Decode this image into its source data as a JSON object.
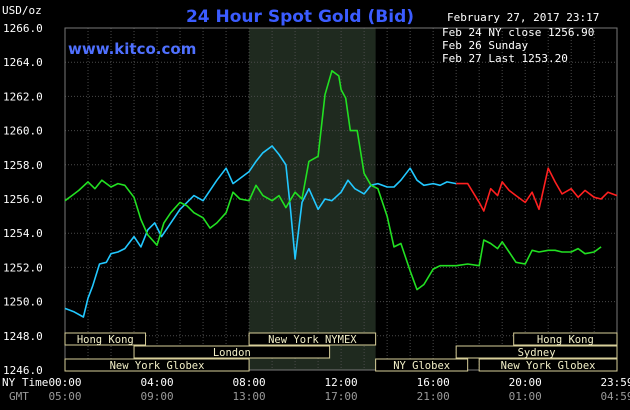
{
  "header": {
    "title": "24 Hour Spot Gold (Bid)",
    "website": "www.kitco.com",
    "unit": "USD/oz",
    "timestamp": "February 27, 2017 23:17"
  },
  "legend": [
    {
      "label": "Feb 24 NY close 1256.90",
      "color": "#22c8ff"
    },
    {
      "label": "Feb 26 Sunday",
      "color": "#ff2020"
    },
    {
      "label": "Feb 27 Last 1253.20",
      "color": "#22e022"
    }
  ],
  "time_axis": {
    "ny_label": "NY Time",
    "gmt_label": "GMT",
    "ny_ticks": [
      "00:00",
      "04:00",
      "08:00",
      "12:00",
      "16:00",
      "20:00",
      "23:59"
    ],
    "gmt_ticks": [
      "05:00",
      "09:00",
      "13:00",
      "17:00",
      "21:00",
      "01:00",
      "04:59"
    ]
  },
  "markets": [
    {
      "name": "Hong Kong",
      "start": 0,
      "end": 3.5
    },
    {
      "name": "London",
      "start": 3.0,
      "end": 11.5
    },
    {
      "name": "New York Globex",
      "start": 0,
      "end": 8.0
    },
    {
      "name": "New York NYMEX",
      "start": 8.0,
      "end": 13.5
    },
    {
      "name": "NY Globex",
      "start": 13.5,
      "end": 17.5
    },
    {
      "name": "Hong Kong",
      "start": 19.5,
      "end": 23.99
    },
    {
      "name": "Sydney",
      "start": 17.0,
      "end": 23.99
    },
    {
      "name": "New York Globex",
      "start": 18.0,
      "end": 23.99
    }
  ],
  "colors": {
    "background": "#000000",
    "grid": "#4a4a4a",
    "nymex_session": "#1f2a1f",
    "market_bar": "#000000",
    "market_border": "#d8cf9a"
  },
  "chart_data": {
    "type": "line",
    "title": "24 Hour Spot Gold (Bid)",
    "ylabel": "USD/oz",
    "xlabel": "NY Time",
    "xlim": [
      0,
      23.99
    ],
    "ylim": [
      1246.0,
      1266.0
    ],
    "y_ticks": [
      "1246.0",
      "1248.0",
      "1250.0",
      "1252.0",
      "1254.0",
      "1256.0",
      "1258.0",
      "1260.0",
      "1262.0",
      "1264.0",
      "1266.0"
    ],
    "grid": true,
    "legend_position": "top-right",
    "shaded_session": [
      8.0,
      13.5
    ],
    "series": [
      {
        "name": "Feb 24 NY close 1256.90",
        "color": "#22c8ff",
        "x": [
          0,
          0.4,
          0.8,
          1.0,
          1.2,
          1.5,
          1.8,
          2.0,
          2.3,
          2.6,
          3.0,
          3.3,
          3.6,
          3.9,
          4.2,
          4.6,
          5.0,
          5.3,
          5.6,
          6.0,
          6.3,
          6.6,
          7.0,
          7.3,
          7.6,
          8.0,
          8.3,
          8.6,
          9.0,
          9.3,
          9.6,
          9.8,
          10.0,
          10.3,
          10.6,
          11.0,
          11.3,
          11.6,
          12.0,
          12.3,
          12.6,
          13.0,
          13.3,
          13.6,
          14.0,
          14.3,
          14.6,
          15.0,
          15.3,
          15.6,
          16.0,
          16.3,
          16.6,
          17.0
        ],
        "y": [
          1249.6,
          1249.4,
          1249.1,
          1250.2,
          1250.9,
          1252.2,
          1252.3,
          1252.8,
          1252.9,
          1253.1,
          1253.8,
          1253.2,
          1254.2,
          1254.6,
          1253.8,
          1254.6,
          1255.4,
          1255.8,
          1256.2,
          1255.9,
          1256.5,
          1257.1,
          1257.8,
          1256.9,
          1257.2,
          1257.6,
          1258.2,
          1258.7,
          1259.1,
          1258.6,
          1258.0,
          1255.4,
          1252.5,
          1255.8,
          1256.6,
          1255.4,
          1256.0,
          1255.9,
          1256.4,
          1257.1,
          1256.6,
          1256.3,
          1256.8,
          1256.9,
          1256.7,
          1256.7,
          1257.1,
          1257.8,
          1257.1,
          1256.8,
          1256.9,
          1256.8,
          1257.0,
          1256.9
        ]
      },
      {
        "name": "Feb 26 Sunday",
        "color": "#ff2020",
        "x": [
          17.0,
          17.5,
          18.0,
          18.2,
          18.5,
          18.8,
          19.0,
          19.3,
          19.6,
          20.0,
          20.3,
          20.6,
          21.0,
          21.3,
          21.6,
          22.0,
          22.3,
          22.6,
          23.0,
          23.3,
          23.6,
          23.99
        ],
        "y": [
          1256.9,
          1256.9,
          1255.8,
          1255.3,
          1256.6,
          1256.2,
          1257.0,
          1256.5,
          1256.2,
          1255.8,
          1256.4,
          1255.4,
          1257.8,
          1257.0,
          1256.3,
          1256.6,
          1256.1,
          1256.5,
          1256.1,
          1256.0,
          1256.4,
          1256.2
        ]
      },
      {
        "name": "Feb 27 Last 1253.20",
        "color": "#22e022",
        "x": [
          0,
          0.3,
          0.6,
          1.0,
          1.3,
          1.6,
          2.0,
          2.3,
          2.6,
          3.0,
          3.3,
          3.6,
          4.0,
          4.3,
          4.6,
          5.0,
          5.3,
          5.6,
          6.0,
          6.3,
          6.6,
          7.0,
          7.3,
          7.6,
          8.0,
          8.3,
          8.6,
          9.0,
          9.3,
          9.6,
          10.0,
          10.3,
          10.6,
          11.0,
          11.3,
          11.6,
          11.9,
          12.0,
          12.2,
          12.4,
          12.7,
          13.0,
          13.3,
          13.6,
          14.0,
          14.3,
          14.6,
          15.0,
          15.3,
          15.6,
          16.0,
          16.3,
          16.6,
          17.0,
          17.5,
          18.0,
          18.2,
          18.5,
          18.8,
          19.0,
          19.3,
          19.6,
          20.0,
          20.3,
          20.6,
          21.0,
          21.3,
          21.6,
          22.0,
          22.3,
          22.6,
          23.0,
          23.3
        ],
        "y": [
          1255.9,
          1256.2,
          1256.5,
          1257.0,
          1256.6,
          1257.1,
          1256.7,
          1256.9,
          1256.8,
          1256.1,
          1254.8,
          1253.9,
          1253.3,
          1254.6,
          1255.2,
          1255.8,
          1255.6,
          1255.2,
          1254.9,
          1254.3,
          1254.6,
          1255.2,
          1256.4,
          1256.0,
          1255.9,
          1256.8,
          1256.2,
          1255.9,
          1256.2,
          1255.5,
          1256.4,
          1256.0,
          1258.2,
          1258.5,
          1262.1,
          1263.5,
          1263.2,
          1262.4,
          1261.9,
          1260.0,
          1260.0,
          1257.5,
          1256.8,
          1256.6,
          1255.0,
          1253.2,
          1253.4,
          1251.8,
          1250.7,
          1251.0,
          1251.9,
          1252.1,
          1252.1,
          1252.1,
          1252.2,
          1252.1,
          1253.6,
          1253.4,
          1253.1,
          1253.5,
          1252.9,
          1252.3,
          1252.2,
          1253.0,
          1252.9,
          1253.0,
          1253.0,
          1252.9,
          1252.9,
          1253.1,
          1252.8,
          1252.9,
          1253.2
        ]
      }
    ]
  }
}
